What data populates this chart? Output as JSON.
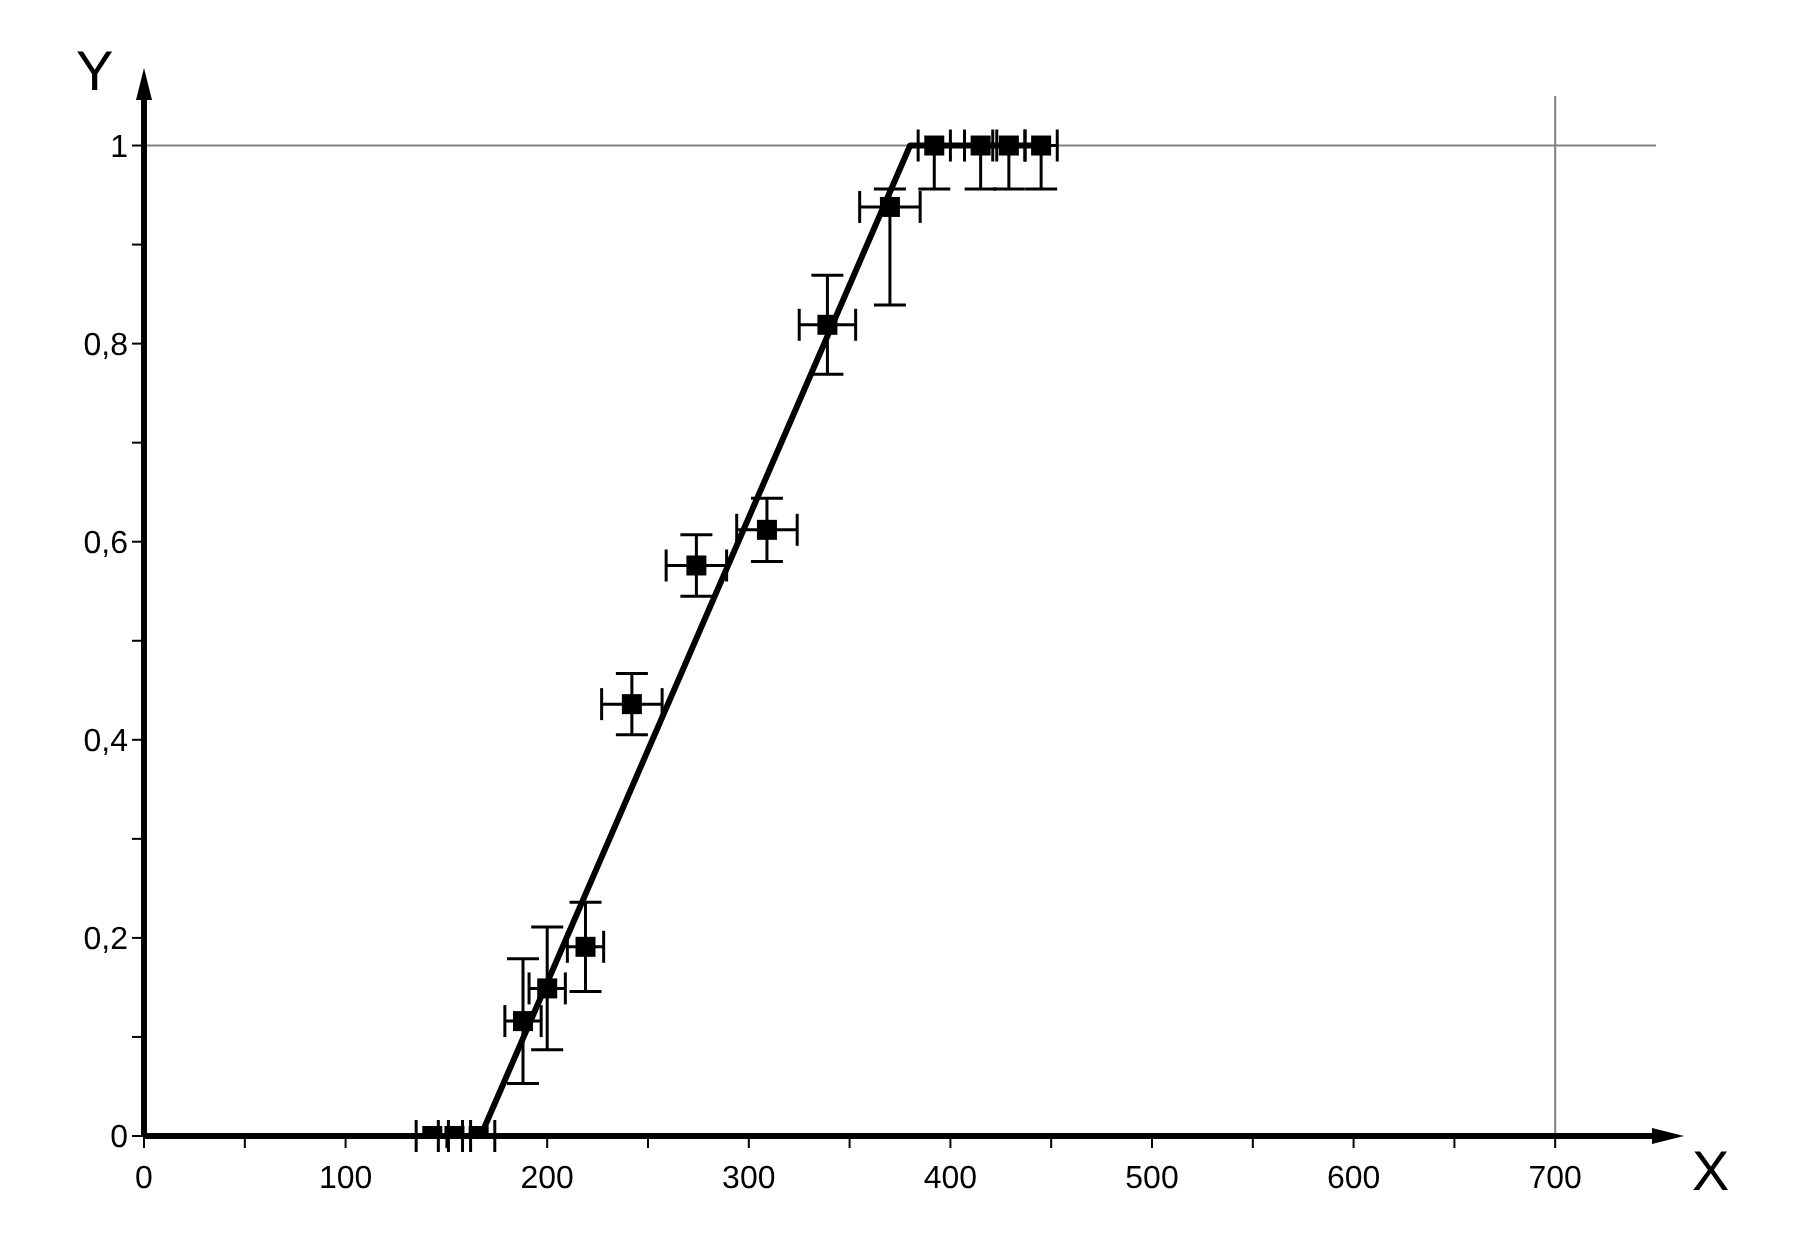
{
  "chart_data": {
    "type": "scatter",
    "xlabel": "X",
    "ylabel": "Y",
    "xlim": [
      0,
      750
    ],
    "ylim": [
      0,
      1.05
    ],
    "xticks": [
      0,
      {
        "value": 50,
        "label": null
      },
      100,
      {
        "value": 150,
        "label": null
      },
      200,
      {
        "value": 250,
        "label": null
      },
      300,
      {
        "value": 350,
        "label": null
      },
      400,
      {
        "value": 450,
        "label": null
      },
      500,
      {
        "value": 550,
        "label": null
      },
      600,
      {
        "value": 650,
        "label": null
      },
      700
    ],
    "yticks": [
      {
        "value": 0,
        "label": "0"
      },
      {
        "value": 0.1,
        "label": null
      },
      {
        "value": 0.2,
        "label": "0,2"
      },
      {
        "value": 0.3,
        "label": null
      },
      {
        "value": 0.4,
        "label": "0,4"
      },
      {
        "value": 0.5,
        "label": null
      },
      {
        "value": 0.6,
        "label": "0,6"
      },
      {
        "value": 0.7,
        "label": null
      },
      {
        "value": 0.8,
        "label": "0,8"
      },
      {
        "value": 0.9,
        "label": null
      },
      {
        "value": 1,
        "label": "1"
      }
    ],
    "marker": "square",
    "ref_lines": [
      {
        "axis": "y",
        "value": 1,
        "color": "#808080"
      },
      {
        "axis": "x",
        "value": 700,
        "color": "#808080"
      }
    ],
    "series": [
      {
        "color": "#000000",
        "x": [
          143,
          154,
          166,
          188,
          200,
          219,
          242,
          274,
          309,
          339,
          370,
          392,
          415,
          429,
          445
        ],
        "values": [
          0,
          0,
          0,
          0.116,
          0.149,
          0.191,
          0.436,
          0.576,
          0.612,
          0.819,
          0.938,
          1,
          1,
          1,
          1
        ],
        "errors": [
          null,
          null,
          null,
          0.063,
          0.062,
          0.045,
          0.031,
          0.031,
          0.032,
          0.05,
          [
            0.839,
            0.956
          ],
          [
            0.956,
            1
          ],
          [
            0.956,
            1
          ],
          [
            0.956,
            1
          ],
          [
            0.956,
            1
          ]
        ],
        "xerrors": [
          8,
          8,
          8,
          9,
          9,
          9,
          15,
          15,
          15,
          14,
          15,
          8,
          8,
          8,
          8
        ]
      },
      {
        "type": "line",
        "color": "#000000",
        "x": [
          140,
          167,
          380,
          445
        ],
        "values": [
          0,
          0,
          1,
          1
        ],
        "line_style": "solid",
        "marker": "none"
      }
    ]
  }
}
